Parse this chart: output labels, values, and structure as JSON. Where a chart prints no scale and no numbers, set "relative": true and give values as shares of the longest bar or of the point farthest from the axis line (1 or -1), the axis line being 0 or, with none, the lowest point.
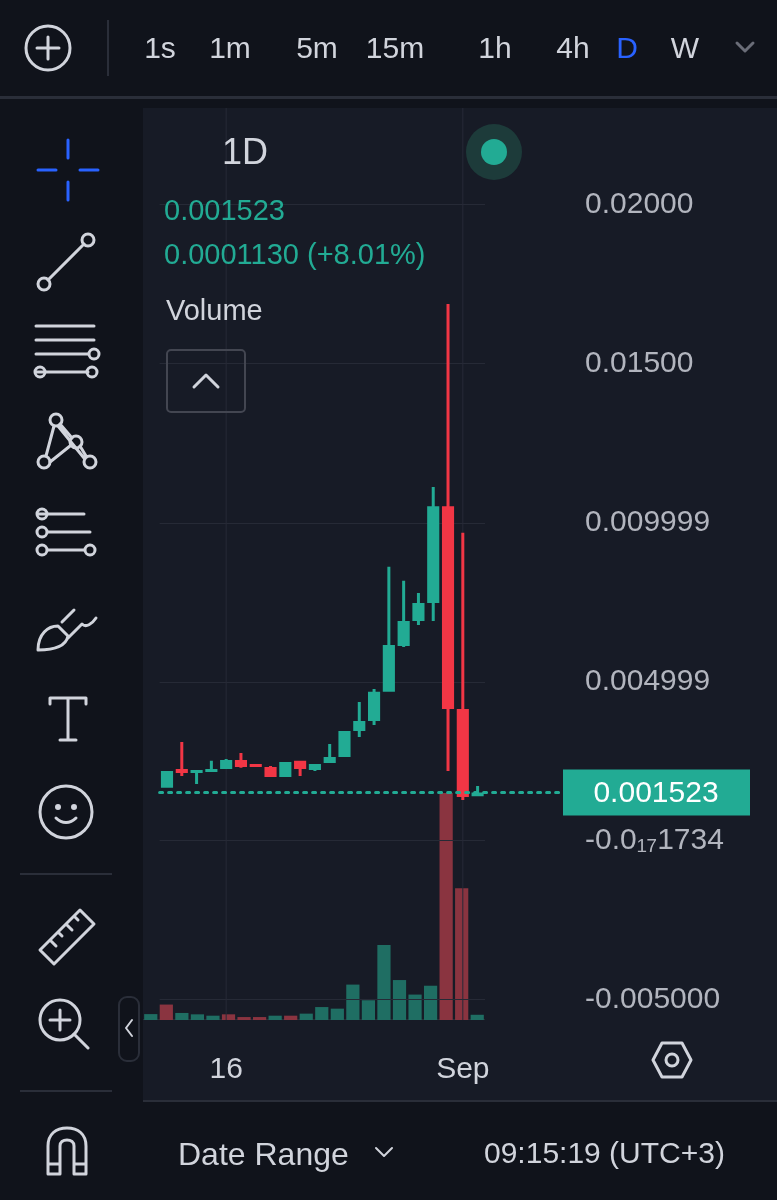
{
  "chart_data": [
    {
      "type": "candlestick",
      "title": "1D",
      "categories": [
        null,
        null,
        null,
        null,
        "16",
        null,
        null,
        null,
        null,
        null,
        null,
        null,
        null,
        null,
        null,
        null,
        null,
        null,
        null,
        null,
        "Sep",
        null
      ],
      "ohlc": [
        [
          0.00167,
          0.0022,
          0.00167,
          0.0022
        ],
        [
          0.00226,
          0.00311,
          0.00204,
          0.00214
        ],
        [
          0.00214,
          0.00223,
          0.00179,
          0.00223
        ],
        [
          0.00217,
          0.00252,
          0.00217,
          0.00226
        ],
        [
          0.00226,
          0.00258,
          0.00226,
          0.00255
        ],
        [
          0.00255,
          0.00277,
          0.0023,
          0.00233
        ],
        [
          0.00242,
          0.00242,
          0.00233,
          0.00233
        ],
        [
          0.00233,
          0.00236,
          0.00201,
          0.00201
        ],
        [
          0.00201,
          0.00248,
          0.00201,
          0.00248
        ],
        [
          0.00252,
          0.00252,
          0.00204,
          0.00226
        ],
        [
          0.00223,
          0.00242,
          0.0022,
          0.00242
        ],
        [
          0.00245,
          0.00305,
          0.00245,
          0.00264
        ],
        [
          0.00264,
          0.00346,
          0.00264,
          0.00346
        ],
        [
          0.00346,
          0.00437,
          0.00327,
          0.00377
        ],
        [
          0.00377,
          0.00478,
          0.00365,
          0.00469
        ],
        [
          0.00469,
          0.00862,
          0.00469,
          0.00616
        ],
        [
          0.00613,
          0.00818,
          0.0061,
          0.00692
        ],
        [
          0.00692,
          0.0078,
          0.00679,
          0.00748
        ],
        [
          0.00748,
          0.01113,
          0.00692,
          0.01053
        ],
        [
          0.01053,
          0.01689,
          0.0022,
          0.00415
        ],
        [
          0.00415,
          0.00969,
          0.00129,
          0.00138
        ],
        [
          0.00141,
          0.00173,
          0.00141,
          0.001523
        ]
      ],
      "colors": [
        "#22ab94",
        "#f23645",
        "#22ab94",
        "#22ab94",
        "#22ab94",
        "#f23645",
        "#f23645",
        "#f23645",
        "#22ab94",
        "#f23645",
        "#22ab94",
        "#22ab94",
        "#22ab94",
        "#22ab94",
        "#22ab94",
        "#22ab94",
        "#22ab94",
        "#22ab94",
        "#22ab94",
        "#f23645",
        "#f23645",
        "#22ab94"
      ],
      "ylim": [
        -0.00563,
        0.02305
      ],
      "yticks": [
        {
          "value": 0.02,
          "label": "0.02000"
        },
        {
          "value": 0.015,
          "label": "0.01500"
        },
        0.009999,
        0.004999,
        {
          "value": 0,
          "label": "-0.0₁₇1734"
        },
        {
          "value": -0.005,
          "label": "-0.005000"
        }
      ],
      "grid": true,
      "ref_lines": [
        {
          "axis": "y",
          "value": 0.001523,
          "label": "0.001523",
          "color": "#22ab94",
          "line_style": "dotted"
        }
      ],
      "annotations": [
        "0.001523",
        "0.0001130 (+8.01%)",
        "Volume",
        "1s",
        "1m",
        "5m",
        "15m",
        "1h",
        "4h",
        "D",
        "W",
        "Date Range",
        "09:15:19 (UTC+3)"
      ]
    },
    {
      "type": "bar",
      "relative": true,
      "categories": [
        null,
        null,
        null,
        null,
        null,
        null,
        null,
        null,
        null,
        null,
        null,
        null,
        null,
        null,
        null,
        null,
        null,
        null,
        null,
        null,
        null,
        null
      ],
      "values": [
        0.026,
        0.068,
        0.031,
        0.025,
        0.019,
        0.025,
        0.013,
        0.013,
        0.019,
        0.019,
        0.028,
        0.057,
        0.05,
        0.156,
        0.087,
        0.33,
        0.176,
        0.112,
        0.151,
        1,
        0.58,
        0.023
      ],
      "colors": [
        "#1f6e63",
        "#8a3440",
        "#1f6e63",
        "#1f6e63",
        "#1f6e63",
        "#8a3440",
        "#8a3440",
        "#8a3440",
        "#1f6e63",
        "#8a3440",
        "#1f6e63",
        "#1f6e63",
        "#1f6e63",
        "#1f6e63",
        "#1f6e63",
        "#1f6e63",
        "#1f6e63",
        "#1f6e63",
        "#1f6e63",
        "#8a3440",
        "#8a3440",
        "#1f6e63"
      ]
    }
  ]
}
